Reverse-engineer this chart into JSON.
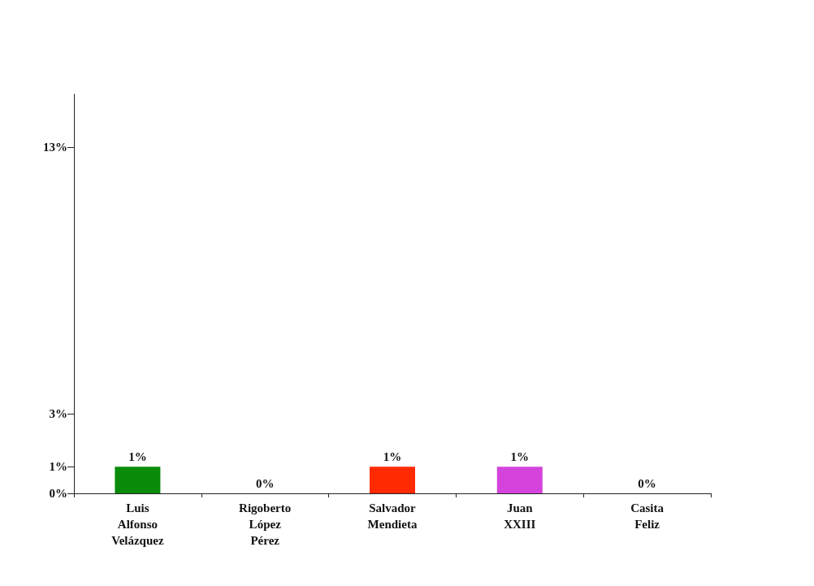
{
  "chart_data": {
    "type": "bar",
    "categories": [
      "Luis\nAlfonso\nVelázquez",
      "Rigoberto\nLópez\nPérez",
      "Salvador\nMendieta",
      "Juan\nXXIII",
      "Casita\nFeliz"
    ],
    "values": [
      1,
      0,
      1,
      1,
      0
    ],
    "colors": [
      "#0a8c0a",
      "#808080",
      "#ff2a00",
      "#d444dc",
      "#808080"
    ],
    "value_labels": [
      "1%",
      "0%",
      "1%",
      "1%",
      "0%"
    ],
    "ylim": [
      0,
      15
    ],
    "yticks": [
      {
        "value": 0,
        "label": "0%"
      },
      {
        "value": 1,
        "label": "1%"
      },
      {
        "value": 3,
        "label": "3%"
      },
      {
        "value": 13,
        "label": "13%"
      }
    ],
    "grid": false
  }
}
